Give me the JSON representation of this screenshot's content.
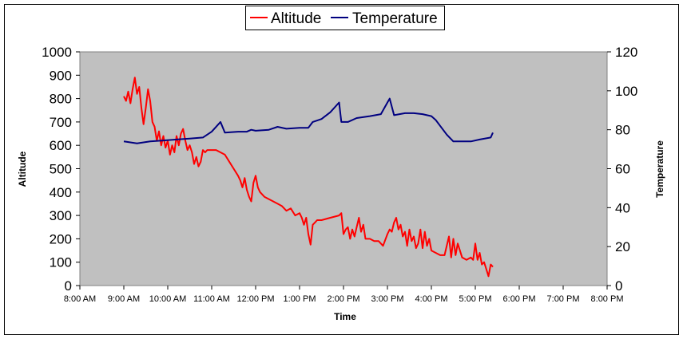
{
  "chart_data": {
    "type": "line",
    "title": "",
    "xlabel": "Time",
    "ylabel": "Altitude",
    "y2label": "Temperature",
    "ylim": [
      0,
      1000
    ],
    "y2lim": [
      0,
      120
    ],
    "yticks": [
      "0",
      "100",
      "200",
      "300",
      "400",
      "500",
      "600",
      "700",
      "800",
      "900",
      "1000"
    ],
    "y2ticks": [
      "0",
      "20",
      "40",
      "60",
      "80",
      "100",
      "120"
    ],
    "xticks": [
      "8:00 AM",
      "9:00 AM",
      "10:00 AM",
      "11:00 AM",
      "12:00 PM",
      "1:00 PM",
      "2:00 PM",
      "3:00 PM",
      "4:00 PM",
      "5:00 PM",
      "6:00 PM",
      "7:00 PM",
      "8:00 PM"
    ],
    "xlim_hours": [
      8,
      20
    ],
    "legend_position": "top-center",
    "series": [
      {
        "name": "Altitude",
        "axis": "left",
        "color": "#ff0000",
        "points": [
          [
            9.0,
            810
          ],
          [
            9.05,
            790
          ],
          [
            9.1,
            830
          ],
          [
            9.15,
            780
          ],
          [
            9.2,
            840
          ],
          [
            9.25,
            890
          ],
          [
            9.3,
            820
          ],
          [
            9.35,
            850
          ],
          [
            9.4,
            760
          ],
          [
            9.45,
            690
          ],
          [
            9.5,
            760
          ],
          [
            9.55,
            840
          ],
          [
            9.6,
            790
          ],
          [
            9.65,
            700
          ],
          [
            9.7,
            680
          ],
          [
            9.75,
            620
          ],
          [
            9.8,
            660
          ],
          [
            9.85,
            600
          ],
          [
            9.9,
            640
          ],
          [
            9.95,
            590
          ],
          [
            10.0,
            620
          ],
          [
            10.05,
            560
          ],
          [
            10.1,
            600
          ],
          [
            10.15,
            570
          ],
          [
            10.2,
            640
          ],
          [
            10.25,
            600
          ],
          [
            10.3,
            650
          ],
          [
            10.35,
            670
          ],
          [
            10.4,
            620
          ],
          [
            10.45,
            580
          ],
          [
            10.5,
            600
          ],
          [
            10.55,
            570
          ],
          [
            10.6,
            520
          ],
          [
            10.65,
            550
          ],
          [
            10.7,
            510
          ],
          [
            10.75,
            530
          ],
          [
            10.8,
            580
          ],
          [
            10.85,
            570
          ],
          [
            10.9,
            580
          ],
          [
            11.0,
            580
          ],
          [
            11.1,
            580
          ],
          [
            11.2,
            570
          ],
          [
            11.3,
            560
          ],
          [
            11.4,
            530
          ],
          [
            11.5,
            500
          ],
          [
            11.6,
            470
          ],
          [
            11.65,
            450
          ],
          [
            11.7,
            420
          ],
          [
            11.75,
            460
          ],
          [
            11.8,
            410
          ],
          [
            11.85,
            380
          ],
          [
            11.9,
            360
          ],
          [
            11.95,
            440
          ],
          [
            12.0,
            470
          ],
          [
            12.05,
            420
          ],
          [
            12.1,
            400
          ],
          [
            12.2,
            380
          ],
          [
            12.3,
            370
          ],
          [
            12.4,
            360
          ],
          [
            12.5,
            350
          ],
          [
            12.6,
            340
          ],
          [
            12.7,
            320
          ],
          [
            12.8,
            330
          ],
          [
            12.9,
            300
          ],
          [
            13.0,
            310
          ],
          [
            13.05,
            290
          ],
          [
            13.1,
            260
          ],
          [
            13.15,
            290
          ],
          [
            13.2,
            220
          ],
          [
            13.25,
            175
          ],
          [
            13.3,
            260
          ],
          [
            13.35,
            270
          ],
          [
            13.4,
            280
          ],
          [
            13.5,
            280
          ],
          [
            13.7,
            290
          ],
          [
            13.9,
            300
          ],
          [
            13.95,
            310
          ],
          [
            14.0,
            220
          ],
          [
            14.05,
            240
          ],
          [
            14.1,
            250
          ],
          [
            14.15,
            200
          ],
          [
            14.2,
            240
          ],
          [
            14.25,
            210
          ],
          [
            14.3,
            250
          ],
          [
            14.35,
            290
          ],
          [
            14.4,
            230
          ],
          [
            14.45,
            260
          ],
          [
            14.5,
            200
          ],
          [
            14.6,
            200
          ],
          [
            14.7,
            190
          ],
          [
            14.8,
            190
          ],
          [
            14.9,
            170
          ],
          [
            15.0,
            220
          ],
          [
            15.05,
            240
          ],
          [
            15.1,
            230
          ],
          [
            15.15,
            270
          ],
          [
            15.2,
            290
          ],
          [
            15.25,
            240
          ],
          [
            15.3,
            260
          ],
          [
            15.35,
            210
          ],
          [
            15.4,
            230
          ],
          [
            15.45,
            170
          ],
          [
            15.5,
            240
          ],
          [
            15.55,
            190
          ],
          [
            15.6,
            210
          ],
          [
            15.65,
            160
          ],
          [
            15.7,
            180
          ],
          [
            15.75,
            240
          ],
          [
            15.8,
            160
          ],
          [
            15.85,
            230
          ],
          [
            15.9,
            170
          ],
          [
            15.95,
            200
          ],
          [
            16.0,
            150
          ],
          [
            16.1,
            140
          ],
          [
            16.2,
            130
          ],
          [
            16.3,
            130
          ],
          [
            16.4,
            210
          ],
          [
            16.45,
            120
          ],
          [
            16.5,
            200
          ],
          [
            16.55,
            130
          ],
          [
            16.6,
            180
          ],
          [
            16.7,
            120
          ],
          [
            16.8,
            110
          ],
          [
            16.9,
            120
          ],
          [
            16.95,
            110
          ],
          [
            17.0,
            180
          ],
          [
            17.05,
            110
          ],
          [
            17.1,
            140
          ],
          [
            17.15,
            90
          ],
          [
            17.2,
            100
          ],
          [
            17.25,
            70
          ],
          [
            17.3,
            40
          ],
          [
            17.35,
            90
          ],
          [
            17.4,
            80
          ]
        ]
      },
      {
        "name": "Temperature",
        "axis": "right",
        "color": "#000080",
        "points": [
          [
            9.0,
            74
          ],
          [
            9.3,
            73
          ],
          [
            9.6,
            74
          ],
          [
            9.9,
            74.5
          ],
          [
            10.2,
            75
          ],
          [
            10.5,
            75.5
          ],
          [
            10.8,
            76
          ],
          [
            11.0,
            79
          ],
          [
            11.2,
            84
          ],
          [
            11.3,
            78.5
          ],
          [
            11.6,
            79
          ],
          [
            11.8,
            79
          ],
          [
            11.9,
            80
          ],
          [
            12.0,
            79.5
          ],
          [
            12.3,
            80
          ],
          [
            12.5,
            81.5
          ],
          [
            12.7,
            80.5
          ],
          [
            13.0,
            81
          ],
          [
            13.2,
            81
          ],
          [
            13.3,
            84
          ],
          [
            13.5,
            85.5
          ],
          [
            13.7,
            89
          ],
          [
            13.9,
            94
          ],
          [
            13.95,
            84
          ],
          [
            14.1,
            84
          ],
          [
            14.3,
            86
          ],
          [
            14.6,
            87
          ],
          [
            14.85,
            88
          ],
          [
            15.0,
            94
          ],
          [
            15.05,
            96
          ],
          [
            15.15,
            87.5
          ],
          [
            15.4,
            88.5
          ],
          [
            15.6,
            88.5
          ],
          [
            15.8,
            88
          ],
          [
            15.9,
            87.5
          ],
          [
            16.0,
            87
          ],
          [
            16.1,
            85
          ],
          [
            16.2,
            82
          ],
          [
            16.35,
            77.5
          ],
          [
            16.5,
            74
          ],
          [
            16.7,
            74
          ],
          [
            16.9,
            74
          ],
          [
            17.1,
            75
          ],
          [
            17.35,
            76
          ],
          [
            17.4,
            78.5
          ]
        ]
      }
    ]
  }
}
